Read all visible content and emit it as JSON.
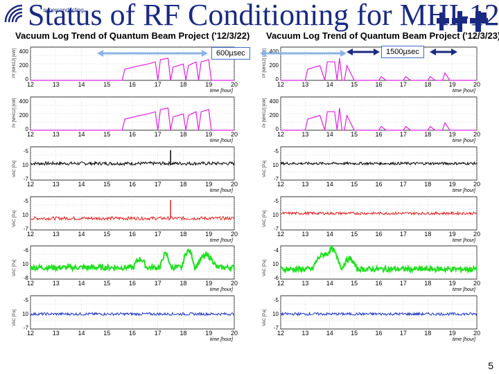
{
  "slide": {
    "title": "Status of RF Conditioning for MHI-12",
    "logo_text": "superconducting",
    "page_number": "5"
  },
  "colors": {
    "title": "#1a2a80",
    "magenta": "#e020e0",
    "black": "#000000",
    "red": "#e02020",
    "green": "#20e020",
    "blue": "#1a30c0",
    "arrow_left": "#8ab4e8",
    "arrow_right": "#1a2a80"
  },
  "annotations": {
    "left_pulse": "600µsec",
    "right_pulse": "1500µsec"
  },
  "chart_data": [
    {
      "type": "line",
      "panel": "left",
      "title": "Vacuum Log Trend of Quantum Beam Project ('12/3/22)",
      "xlabel": "time [hour]",
      "xlim": [
        12,
        20
      ],
      "x_ticks": [
        "12",
        "13",
        "14",
        "15",
        "16",
        "17",
        "18",
        "19",
        "20"
      ],
      "rows": [
        {
          "ylabel": "Pf [MHI12] [kW]",
          "color": "magenta",
          "y_ticks": [
            "400",
            "200",
            "0"
          ],
          "ylim": [
            0,
            450
          ],
          "series": [
            [
              12,
              0
            ],
            [
              15.6,
              0
            ],
            [
              15.7,
              150
            ],
            [
              16.3,
              200
            ],
            [
              16.6,
              220
            ],
            [
              16.9,
              250
            ],
            [
              17,
              0
            ],
            [
              17.1,
              280
            ],
            [
              17.4,
              300
            ],
            [
              17.5,
              0
            ],
            [
              17.6,
              180
            ],
            [
              18,
              220
            ],
            [
              18.1,
              0
            ],
            [
              18.2,
              200
            ],
            [
              18.5,
              250
            ],
            [
              18.6,
              0
            ],
            [
              18.7,
              250
            ],
            [
              19,
              280
            ],
            [
              19.1,
              0
            ],
            [
              20,
              0
            ]
          ]
        },
        {
          "ylabel": "Pr [MHI12] [kW]",
          "color": "magenta",
          "y_ticks": [
            "400",
            "200",
            "0"
          ],
          "ylim": [
            0,
            450
          ],
          "series": [
            [
              12,
              0
            ],
            [
              15.6,
              0
            ],
            [
              15.7,
              150
            ],
            [
              16.3,
              200
            ],
            [
              16.6,
              220
            ],
            [
              16.9,
              250
            ],
            [
              17,
              0
            ],
            [
              17.1,
              280
            ],
            [
              17.4,
              300
            ],
            [
              17.5,
              0
            ],
            [
              17.6,
              180
            ],
            [
              18,
              220
            ],
            [
              18.1,
              0
            ],
            [
              18.2,
              200
            ],
            [
              18.5,
              250
            ],
            [
              18.6,
              0
            ],
            [
              18.7,
              250
            ],
            [
              19,
              280
            ],
            [
              19.1,
              0
            ],
            [
              20,
              0
            ]
          ]
        },
        {
          "ylabel": "VAC [Pa]",
          "color": "black",
          "y_ticks": [
            "-5",
            "10",
            "-7"
          ],
          "ylim": [
            0,
            1
          ],
          "base": 0.5,
          "noise": 0.05,
          "spikes": [
            [
              17.5,
              0.9
            ]
          ]
        },
        {
          "ylabel": "VAC [Pa]",
          "color": "red",
          "y_ticks": [
            "-5",
            "10",
            "-7"
          ],
          "ylim": [
            0,
            1
          ],
          "base": 0.35,
          "noise": 0.05,
          "spikes": [
            [
              17.5,
              0.9
            ]
          ]
        },
        {
          "ylabel": "VAC [Pa]",
          "color": "green",
          "y_ticks": [
            "-6",
            "10",
            "-8"
          ],
          "ylim": [
            0,
            1
          ],
          "base": 0.35,
          "noise": 0.08,
          "bumps": [
            [
              16.3,
              0.25,
              0.25
            ],
            [
              17.3,
              0.2,
              0.4
            ],
            [
              18.2,
              0.25,
              0.5
            ],
            [
              18.9,
              0.4,
              0.35
            ]
          ]
        },
        {
          "ylabel": "VAC [Pa]",
          "color": "blue",
          "y_ticks": [
            "-5",
            "10",
            "-7"
          ],
          "ylim": [
            0,
            1
          ],
          "base": 0.45,
          "noise": 0.04
        }
      ]
    },
    {
      "type": "line",
      "panel": "right",
      "title": "Vacuum Log Trend of Quantum Beam Project ('12/3/23)",
      "xlabel": "time [hour]",
      "xlim": [
        12,
        20
      ],
      "x_ticks": [
        "12",
        "13",
        "14",
        "15",
        "16",
        "17",
        "18",
        "19",
        "20"
      ],
      "rows": [
        {
          "ylabel": "Pf [MHI12] [kW]",
          "color": "magenta",
          "y_ticks": [
            "400",
            "200",
            "0"
          ],
          "ylim": [
            0,
            450
          ],
          "series": [
            [
              12,
              0
            ],
            [
              13,
              0
            ],
            [
              13.1,
              150
            ],
            [
              13.6,
              200
            ],
            [
              13.8,
              0
            ],
            [
              13.9,
              250
            ],
            [
              14.2,
              250
            ],
            [
              14.3,
              0
            ],
            [
              14.4,
              300
            ],
            [
              14.5,
              0
            ],
            [
              14.6,
              0
            ],
            [
              14.7,
              200
            ],
            [
              15,
              0
            ],
            [
              16,
              0
            ],
            [
              16.1,
              50
            ],
            [
              16.3,
              0
            ],
            [
              17,
              0
            ],
            [
              17.1,
              50
            ],
            [
              17.3,
              0
            ],
            [
              18,
              0
            ],
            [
              18.1,
              50
            ],
            [
              18.3,
              0
            ],
            [
              18.6,
              0
            ],
            [
              18.7,
              100
            ],
            [
              18.9,
              0
            ],
            [
              20,
              0
            ]
          ]
        },
        {
          "ylabel": "Pr [MHI12] [kW]",
          "color": "magenta",
          "y_ticks": [
            "400",
            "200",
            "0"
          ],
          "ylim": [
            0,
            450
          ],
          "series": [
            [
              12,
              0
            ],
            [
              13,
              0
            ],
            [
              13.1,
              150
            ],
            [
              13.6,
              200
            ],
            [
              13.8,
              0
            ],
            [
              13.9,
              250
            ],
            [
              14.2,
              250
            ],
            [
              14.3,
              0
            ],
            [
              14.4,
              300
            ],
            [
              14.5,
              0
            ],
            [
              14.6,
              0
            ],
            [
              14.7,
              200
            ],
            [
              15,
              0
            ],
            [
              16,
              0
            ],
            [
              16.1,
              50
            ],
            [
              16.3,
              0
            ],
            [
              17,
              0
            ],
            [
              17.1,
              50
            ],
            [
              17.3,
              0
            ],
            [
              18,
              0
            ],
            [
              18.1,
              50
            ],
            [
              18.3,
              0
            ],
            [
              18.6,
              0
            ],
            [
              18.7,
              100
            ],
            [
              18.9,
              0
            ],
            [
              20,
              0
            ]
          ]
        },
        {
          "ylabel": "VAC [Pa]",
          "color": "black",
          "y_ticks": [
            "-5",
            "10",
            "-7"
          ],
          "ylim": [
            0,
            1
          ],
          "base": 0.5,
          "noise": 0.04
        },
        {
          "ylabel": "VAC [Pa]",
          "color": "red",
          "y_ticks": [
            "-5",
            "10",
            "-7"
          ],
          "ylim": [
            0,
            1
          ],
          "base": 0.5,
          "noise": 0.04
        },
        {
          "ylabel": "VAC [Pa]",
          "color": "green",
          "y_ticks": [
            "-4",
            "10",
            "-6"
          ],
          "ylim": [
            0,
            1
          ],
          "base": 0.3,
          "noise": 0.08,
          "bumps": [
            [
              13.8,
              0.5,
              0.45
            ],
            [
              14.2,
              0.3,
              0.35
            ],
            [
              14.8,
              0.3,
              0.3
            ]
          ]
        },
        {
          "ylabel": "VAC [Pa]",
          "color": "blue",
          "y_ticks": [
            "-5",
            "10",
            "-7"
          ],
          "ylim": [
            0,
            1
          ],
          "base": 0.45,
          "noise": 0.04
        }
      ]
    }
  ]
}
